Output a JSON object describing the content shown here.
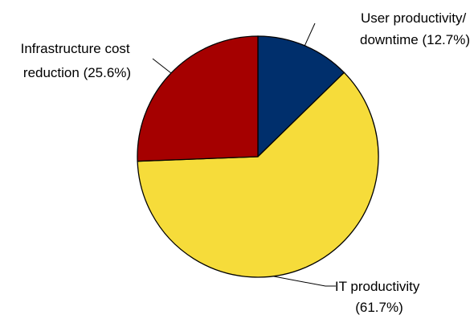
{
  "chart_data": {
    "type": "pie",
    "title": "",
    "slices": [
      {
        "label_lines": [
          "User productivity/",
          "downtime  (12.7%)"
        ],
        "value": 12.7,
        "color": "#002F6C"
      },
      {
        "label_lines": [
          "IT productivity",
          "(61.7%)"
        ],
        "value": 61.7,
        "color": "#F6DC3A"
      },
      {
        "label_lines": [
          "Infrastructure cost",
          "reduction (25.6%)"
        ],
        "value": 25.6,
        "color": "#A50000"
      }
    ],
    "legend": "none",
    "start_angle": "12 o'clock",
    "direction": "clockwise",
    "slice_outline_color": "#000000"
  }
}
